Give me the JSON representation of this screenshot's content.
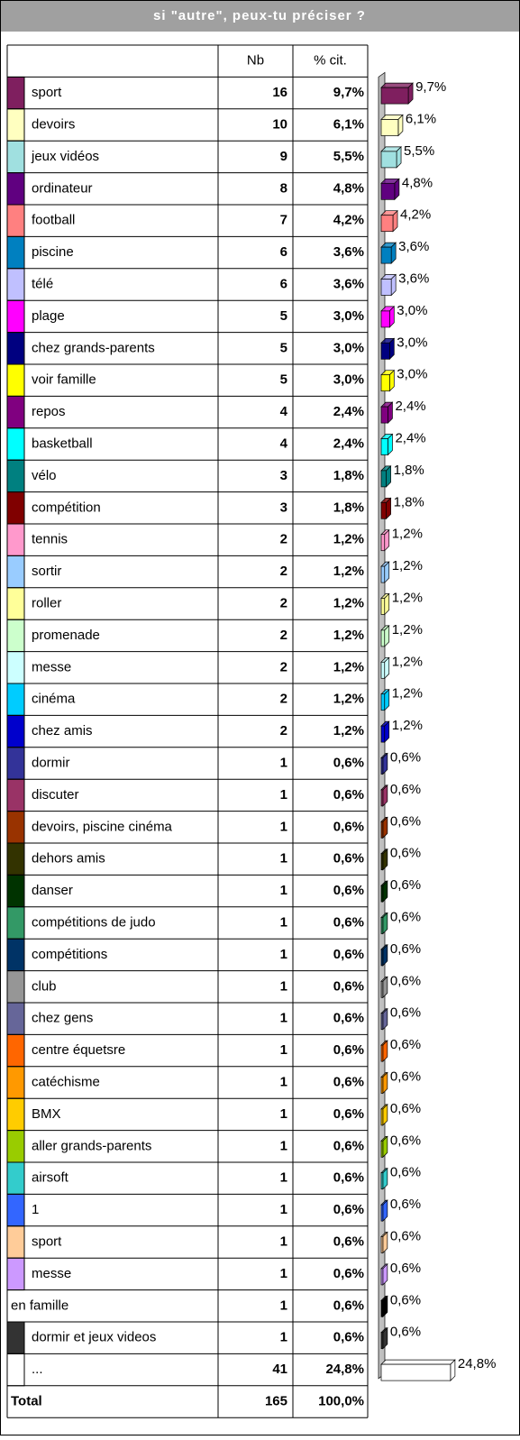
{
  "title": "si \"autre\", peux-tu préciser ?",
  "header": {
    "nb": "Nb",
    "pct": "% cit."
  },
  "rows": [
    {
      "label": "sport",
      "nb": 16,
      "pct": 9.7,
      "pct_label": "9,7%",
      "color": "#7f1f5f"
    },
    {
      "label": "devoirs",
      "nb": 10,
      "pct": 6.1,
      "pct_label": "6,1%",
      "color": "#ffffc0"
    },
    {
      "label": "jeux vidéos",
      "nb": 9,
      "pct": 5.5,
      "pct_label": "5,5%",
      "color": "#a0e0e0"
    },
    {
      "label": "ordinateur",
      "nb": 8,
      "pct": 4.8,
      "pct_label": "4,8%",
      "color": "#600080"
    },
    {
      "label": "football",
      "nb": 7,
      "pct": 4.2,
      "pct_label": "4,2%",
      "color": "#ff8080"
    },
    {
      "label": "piscine",
      "nb": 6,
      "pct": 3.6,
      "pct_label": "3,6%",
      "color": "#0080c0"
    },
    {
      "label": "télé",
      "nb": 6,
      "pct": 3.6,
      "pct_label": "3,6%",
      "color": "#c0c0ff"
    },
    {
      "label": "plage",
      "nb": 5,
      "pct": 3.0,
      "pct_label": "3,0%",
      "color": "#ff00ff"
    },
    {
      "label": "chez grands-parents",
      "nb": 5,
      "pct": 3.0,
      "pct_label": "3,0%",
      "color": "#000080"
    },
    {
      "label": "voir famille",
      "nb": 5,
      "pct": 3.0,
      "pct_label": "3,0%",
      "color": "#ffff00"
    },
    {
      "label": "repos",
      "nb": 4,
      "pct": 2.4,
      "pct_label": "2,4%",
      "color": "#800080"
    },
    {
      "label": "basketball",
      "nb": 4,
      "pct": 2.4,
      "pct_label": "2,4%",
      "color": "#00ffff"
    },
    {
      "label": "vélo",
      "nb": 3,
      "pct": 1.8,
      "pct_label": "1,8%",
      "color": "#008080"
    },
    {
      "label": "compétition",
      "nb": 3,
      "pct": 1.8,
      "pct_label": "1,8%",
      "color": "#800000"
    },
    {
      "label": "tennis",
      "nb": 2,
      "pct": 1.2,
      "pct_label": "1,2%",
      "color": "#ff99cc"
    },
    {
      "label": "sortir",
      "nb": 2,
      "pct": 1.2,
      "pct_label": "1,2%",
      "color": "#99ccff"
    },
    {
      "label": "roller",
      "nb": 2,
      "pct": 1.2,
      "pct_label": "1,2%",
      "color": "#ffff99"
    },
    {
      "label": "promenade",
      "nb": 2,
      "pct": 1.2,
      "pct_label": "1,2%",
      "color": "#ccffcc"
    },
    {
      "label": "messe",
      "nb": 2,
      "pct": 1.2,
      "pct_label": "1,2%",
      "color": "#ccffff"
    },
    {
      "label": "cinéma",
      "nb": 2,
      "pct": 1.2,
      "pct_label": "1,2%",
      "color": "#00ccff"
    },
    {
      "label": "chez amis",
      "nb": 2,
      "pct": 1.2,
      "pct_label": "1,2%",
      "color": "#0000cc"
    },
    {
      "label": "dormir",
      "nb": 1,
      "pct": 0.6,
      "pct_label": "0,6%",
      "color": "#333399"
    },
    {
      "label": "discuter",
      "nb": 1,
      "pct": 0.6,
      "pct_label": "0,6%",
      "color": "#993366"
    },
    {
      "label": "devoirs, piscine cinéma",
      "nb": 1,
      "pct": 0.6,
      "pct_label": "0,6%",
      "color": "#993300"
    },
    {
      "label": "dehors amis",
      "nb": 1,
      "pct": 0.6,
      "pct_label": "0,6%",
      "color": "#333300"
    },
    {
      "label": "danser",
      "nb": 1,
      "pct": 0.6,
      "pct_label": "0,6%",
      "color": "#003300"
    },
    {
      "label": "compétitions de judo",
      "nb": 1,
      "pct": 0.6,
      "pct_label": "0,6%",
      "color": "#339966"
    },
    {
      "label": "compétitions",
      "nb": 1,
      "pct": 0.6,
      "pct_label": "0,6%",
      "color": "#003366"
    },
    {
      "label": "club",
      "nb": 1,
      "pct": 0.6,
      "pct_label": "0,6%",
      "color": "#969696"
    },
    {
      "label": "chez gens",
      "nb": 1,
      "pct": 0.6,
      "pct_label": "0,6%",
      "color": "#666699"
    },
    {
      "label": "centre équetsre",
      "nb": 1,
      "pct": 0.6,
      "pct_label": "0,6%",
      "color": "#ff6600"
    },
    {
      "label": "catéchisme",
      "nb": 1,
      "pct": 0.6,
      "pct_label": "0,6%",
      "color": "#ff9900"
    },
    {
      "label": "BMX",
      "nb": 1,
      "pct": 0.6,
      "pct_label": "0,6%",
      "color": "#ffcc00"
    },
    {
      "label": "aller grands-parents",
      "nb": 1,
      "pct": 0.6,
      "pct_label": "0,6%",
      "color": "#99cc00"
    },
    {
      "label": "airsoft",
      "nb": 1,
      "pct": 0.6,
      "pct_label": "0,6%",
      "color": "#33cccc"
    },
    {
      "label": "1",
      "nb": 1,
      "pct": 0.6,
      "pct_label": "0,6%",
      "color": "#3366ff"
    },
    {
      "label": "sport",
      "nb": 1,
      "pct": 0.6,
      "pct_label": "0,6%",
      "color": "#ffcc99"
    },
    {
      "label": "messe",
      "nb": 1,
      "pct": 0.6,
      "pct_label": "0,6%",
      "color": "#cc99ff"
    },
    {
      "label": "en famille",
      "nb": 1,
      "pct": 0.6,
      "pct_label": "0,6%",
      "color": "#000000",
      "swatch": false
    },
    {
      "label": "dormir et jeux videos",
      "nb": 1,
      "pct": 0.6,
      "pct_label": "0,6%",
      "color": "#333333"
    },
    {
      "label": "...",
      "nb": 41,
      "pct": 24.8,
      "pct_label": "24,8%",
      "color": "#ffffff"
    }
  ],
  "total": {
    "label": "Total",
    "nb": 165,
    "pct_label": "100,0%"
  }
}
